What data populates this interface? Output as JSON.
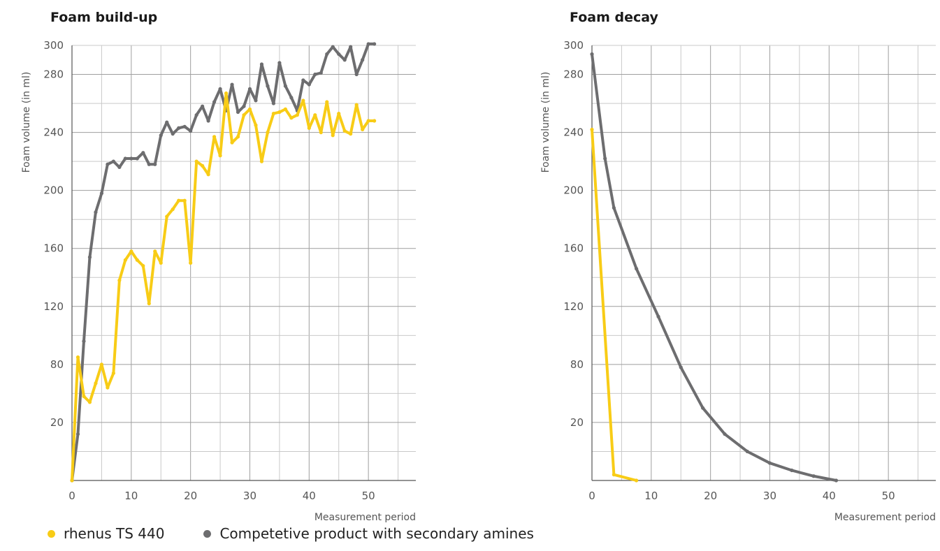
{
  "colors": {
    "yellow": "#f8cc16",
    "gray": "#6d6d6f",
    "grid": "#c9c9c9",
    "axis": "#555555"
  },
  "legend": {
    "rhenus": "rhenus TS 440",
    "competitor": "Competetive product with secondary amines"
  },
  "chart_data": [
    {
      "type": "line",
      "title": "Foam build-up",
      "xlabel": "Measurement period",
      "ylabel": "Foam volume (in ml)",
      "xlim": [
        0,
        58
      ],
      "ylim": [
        0,
        300
      ],
      "xticks": [
        0,
        10,
        20,
        30,
        40,
        50
      ],
      "yticks": [
        20,
        80,
        120,
        160,
        200,
        240,
        280,
        300
      ],
      "grid": true,
      "series": [
        {
          "name": "rhenus TS 440",
          "color": "yellow",
          "x": [
            0,
            1,
            2,
            3,
            4,
            5,
            6,
            7,
            8,
            9,
            10,
            11,
            12,
            13,
            14,
            15,
            16,
            17,
            18,
            19,
            20,
            21,
            22,
            23,
            24,
            25,
            26,
            27,
            28,
            29,
            30,
            31,
            32,
            33,
            34,
            35,
            36,
            37,
            38,
            39,
            40,
            41,
            42,
            43,
            44,
            45,
            46,
            47,
            48,
            49,
            50,
            51
          ],
          "y": [
            0,
            85,
            58,
            54,
            67,
            80,
            64,
            74,
            138,
            152,
            158,
            152,
            148,
            122,
            158,
            150,
            182,
            187,
            193,
            193,
            150,
            220,
            217,
            211,
            237,
            224,
            267,
            233,
            237,
            252,
            256,
            245,
            220,
            240,
            253,
            254,
            256,
            250,
            252,
            262,
            243,
            252,
            240,
            261,
            238,
            253,
            241,
            239,
            259,
            242,
            248,
            248
          ]
        },
        {
          "name": "Competetive product with secondary amines",
          "color": "gray",
          "x": [
            0,
            1,
            2,
            3,
            4,
            5,
            6,
            7,
            8,
            9,
            10,
            11,
            12,
            13,
            14,
            15,
            16,
            17,
            18,
            19,
            20,
            21,
            22,
            23,
            24,
            25,
            26,
            27,
            28,
            29,
            30,
            31,
            32,
            33,
            34,
            35,
            36,
            37,
            38,
            39,
            40,
            41,
            42,
            43,
            44,
            45,
            46,
            47,
            48,
            49,
            50,
            51
          ],
          "y": [
            0,
            32,
            96,
            154,
            185,
            198,
            218,
            220,
            216,
            222,
            222,
            222,
            226,
            218,
            218,
            238,
            247,
            239,
            243,
            244,
            241,
            252,
            258,
            248,
            261,
            270,
            255,
            273,
            254,
            258,
            270,
            262,
            287,
            272,
            260,
            288,
            272,
            264,
            255,
            276,
            273,
            280,
            281,
            294,
            299,
            294,
            290,
            299,
            280,
            290,
            301,
            301
          ]
        }
      ]
    },
    {
      "type": "line",
      "title": "Foam decay",
      "xlabel": "Measurement period",
      "ylabel": "Foam volume (in ml)",
      "xlim": [
        0,
        58
      ],
      "ylim": [
        0,
        300
      ],
      "xticks": [
        0,
        10,
        20,
        30,
        40,
        50
      ],
      "yticks": [
        20,
        80,
        120,
        160,
        200,
        240,
        280,
        300
      ],
      "grid": true,
      "series": [
        {
          "name": "rhenus TS 440",
          "color": "yellow",
          "x": [
            0,
            3.7,
            7.5
          ],
          "y": [
            242,
            4,
            0
          ]
        },
        {
          "name": "Competetive product with secondary amines",
          "color": "gray",
          "x": [
            0,
            2.2,
            3.7,
            7.5,
            11.2,
            15,
            18.7,
            22.4,
            26.2,
            30,
            33.7,
            37.4,
            41.2
          ],
          "y": [
            294,
            222,
            188,
            146,
            113,
            78,
            50,
            32,
            20,
            12,
            7,
            3,
            0
          ]
        }
      ]
    }
  ]
}
